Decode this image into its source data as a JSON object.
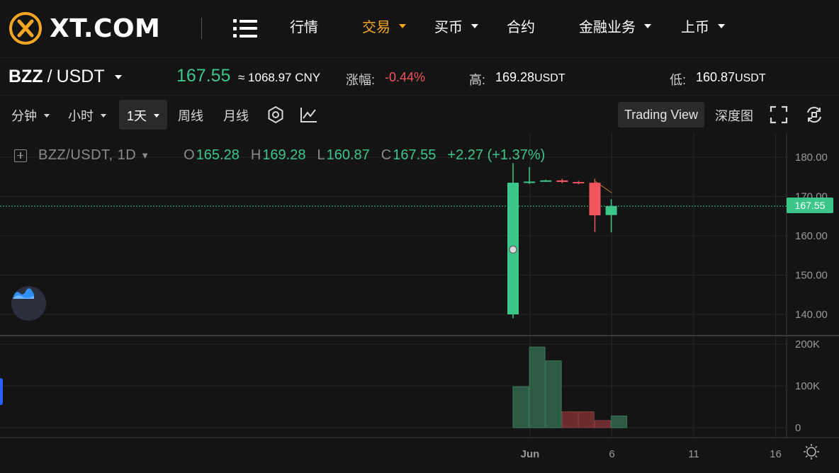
{
  "brand": {
    "name": "XT.COM"
  },
  "nav": {
    "items": [
      {
        "label": "行情",
        "dropdown": false,
        "active": false
      },
      {
        "label": "交易",
        "dropdown": true,
        "active": true
      },
      {
        "label": "买币",
        "dropdown": true,
        "active": false
      },
      {
        "label": "合约",
        "dropdown": false,
        "active": false
      },
      {
        "label": "金融业务",
        "dropdown": true,
        "active": false
      },
      {
        "label": "上币",
        "dropdown": true,
        "active": false
      }
    ],
    "accent_color": "#f5a623"
  },
  "ticker": {
    "base": "BZZ",
    "separator": "/",
    "quote": "USDT",
    "last_price": "167.55",
    "cny_value": "≈ 1068.97 CNY",
    "change_label": "涨幅:",
    "change_value": "-0.44%",
    "high_label": "高:",
    "high_value": "169.28",
    "high_unit": "USDT",
    "low_label": "低:",
    "low_value": "160.87",
    "low_unit": "USDT"
  },
  "toolbar": {
    "minute": "分钟",
    "hour": "小时",
    "day": "1天",
    "week": "周线",
    "month": "月线",
    "trading_view": "Trading View",
    "depth": "深度图"
  },
  "legend": {
    "symbol": "BZZ/USDT, 1D",
    "o_key": "O",
    "o_val": "165.28",
    "h_key": "H",
    "h_val": "169.28",
    "l_key": "L",
    "l_val": "160.87",
    "c_key": "C",
    "c_val": "167.55",
    "change": "+2.27 (+1.37%)"
  },
  "colors": {
    "up": "#3cc68a",
    "down": "#f0545d",
    "up_volume": "#2d5a43",
    "down_volume": "#6b2c30",
    "grid": "#262626"
  },
  "chart_data": {
    "type": "candlestick",
    "current_price": 167.55,
    "price_axis": {
      "ticks": [
        "140.00",
        "150.00",
        "160.00",
        "170.00",
        "180.00"
      ],
      "range": [
        136,
        184
      ]
    },
    "volume_axis": {
      "ticks": [
        "0",
        "100K",
        "200K"
      ],
      "range": [
        0,
        220000
      ]
    },
    "x_axis": {
      "ticks": [
        "Jun",
        "6",
        "11",
        "16"
      ],
      "range": [
        19.5,
        36.5
      ]
    },
    "candles": [
      {
        "day": 31,
        "open": 140.0,
        "high": 178.5,
        "low": 139.0,
        "close": 173.5
      },
      {
        "day": 32,
        "open": 173.5,
        "high": 177.5,
        "low": 173.2,
        "close": 173.8
      },
      {
        "day": 33,
        "open": 173.8,
        "high": 174.3,
        "low": 173.7,
        "close": 174.1
      },
      {
        "day": 34,
        "open": 174.1,
        "high": 174.5,
        "low": 173.4,
        "close": 173.7
      },
      {
        "day": 35,
        "open": 173.7,
        "high": 174.0,
        "low": 173.1,
        "close": 173.5
      },
      {
        "day": 36,
        "open": 173.5,
        "high": 174.5,
        "low": 161.0,
        "close": 165.2
      },
      {
        "day": 37,
        "open": 165.28,
        "high": 169.28,
        "low": 160.87,
        "close": 167.55
      }
    ],
    "volumes": [
      {
        "day": 30,
        "value": 98000,
        "dir": "up"
      },
      {
        "day": 31,
        "value": 193000,
        "dir": "up"
      },
      {
        "day": 32,
        "value": 160000,
        "dir": "up"
      },
      {
        "day": 33,
        "value": 38000,
        "dir": "down"
      },
      {
        "day": 34,
        "value": 38000,
        "dir": "down"
      },
      {
        "day": 35,
        "value": 17000,
        "dir": "down"
      },
      {
        "day": 36,
        "value": 28000,
        "dir": "up"
      }
    ]
  }
}
